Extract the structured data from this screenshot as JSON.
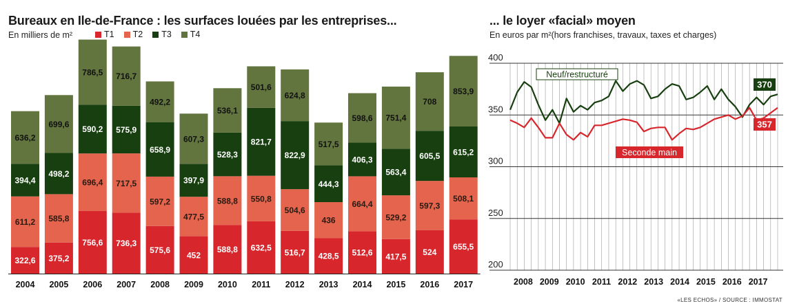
{
  "chart_data": [
    {
      "type": "bar",
      "stacked": true,
      "title": "Bureaux en Ile-de-France : les surfaces louées par les entreprises...",
      "subtitle": "En milliers de m²",
      "categories": [
        "2004",
        "2005",
        "2006",
        "2007",
        "2008",
        "2009",
        "2010",
        "2011",
        "2012",
        "2013",
        "2014",
        "2015",
        "2016",
        "2017"
      ],
      "series": [
        {
          "name": "T1",
          "color": "#d7262c",
          "values": [
            322.6,
            375.2,
            756.6,
            736.3,
            575.6,
            452,
            588.8,
            632.5,
            516.7,
            428.5,
            512.6,
            417.5,
            524,
            655.5
          ],
          "labels": [
            "322,6",
            "375,2",
            "756,6",
            "736,3",
            "575,6",
            "452",
            "588,8",
            "632,5",
            "516,7",
            "428,5",
            "512,6",
            "417,5",
            "524",
            "655,5"
          ]
        },
        {
          "name": "T2",
          "color": "#e4644e",
          "values": [
            611.2,
            585.8,
            696.4,
            717.5,
            597.2,
            477.5,
            588.8,
            550.8,
            504.6,
            436,
            664.4,
            529.2,
            597.3,
            508.1
          ],
          "labels": [
            "611,2",
            "585,8",
            "696,4",
            "717,5",
            "597,2",
            "477,5",
            "588,8",
            "550,8",
            "504,6",
            "436",
            "664,4",
            "529,2",
            "597,3",
            "508,1"
          ]
        },
        {
          "name": "T3",
          "color": "#173f0f",
          "values": [
            394.4,
            498.2,
            590.2,
            575.9,
            658.9,
            397.9,
            528.3,
            821.7,
            822.9,
            444.3,
            406.3,
            563.4,
            605.5,
            615.2
          ],
          "labels": [
            "394,4",
            "498,2",
            "590,2",
            "575,9",
            "658,9",
            "397,9",
            "528,3",
            "821,7",
            "822,9",
            "444,3",
            "406,3",
            "563,4",
            "605,5",
            "615,2"
          ]
        },
        {
          "name": "T4",
          "color": "#63753e",
          "values": [
            636.2,
            699.6,
            786.5,
            716.7,
            492.2,
            607.3,
            536.1,
            501.6,
            624.8,
            517.5,
            598.6,
            751.4,
            708,
            853.9
          ],
          "labels": [
            "636,2",
            "699,6",
            "786,5",
            "716,7",
            "492,2",
            "607,3",
            "536,1",
            "501,6",
            "624,8",
            "517,5",
            "598,6",
            "751,4",
            "708",
            "853,9"
          ]
        }
      ]
    },
    {
      "type": "line",
      "title": "... le loyer «facial» moyen",
      "subtitle": "En euros par m²(hors franchises, travaux, taxes et charges)",
      "ylim": [
        200,
        400
      ],
      "yticks": [
        200,
        250,
        300,
        350,
        400
      ],
      "xticks": [
        "2008",
        "2009",
        "2010",
        "2011",
        "2012",
        "2013",
        "2014",
        "2015",
        "2016",
        "2017"
      ],
      "x_start": 2007.5,
      "x_end": 2017.75,
      "series": [
        {
          "name": "Neuf/restructuré",
          "color": "#173f0f",
          "end_label": "370",
          "values": [
            355,
            372,
            382,
            377,
            360,
            345,
            355,
            342,
            366,
            353,
            359,
            355,
            362,
            364,
            368,
            383,
            373,
            380,
            383,
            379,
            366,
            368,
            375,
            380,
            378,
            365,
            367,
            372,
            378,
            365,
            375,
            365,
            358,
            348,
            360,
            367,
            360,
            368,
            370
          ]
        },
        {
          "name": "Seconde main",
          "color": "#d7262c",
          "end_label": "357",
          "values": [
            345,
            342,
            338,
            347,
            338,
            328,
            328,
            342,
            331,
            326,
            333,
            329,
            340,
            340,
            342,
            344,
            346,
            345,
            343,
            334,
            337,
            338,
            338,
            326,
            332,
            337,
            336,
            338,
            342,
            346,
            348,
            350,
            346,
            349,
            357,
            345,
            347,
            352,
            357
          ]
        }
      ]
    }
  ],
  "source": "«LES ECHOS» / SOURCE : IMMOSTAT"
}
